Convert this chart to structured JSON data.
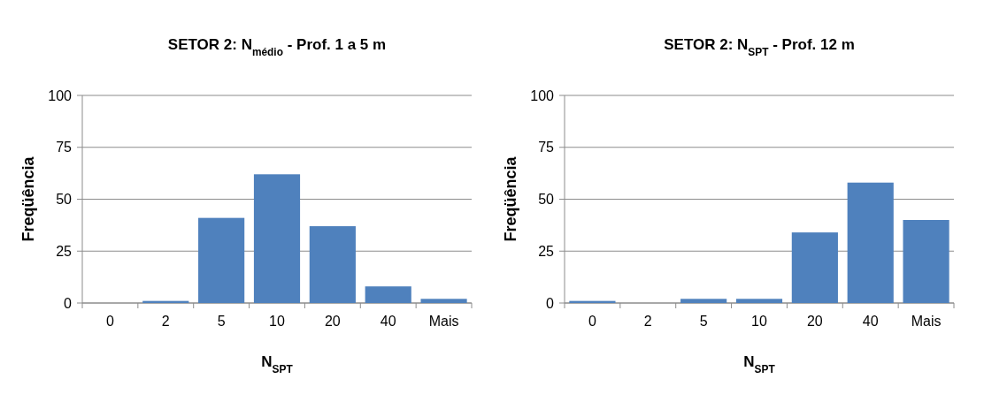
{
  "chart_data": [
    {
      "type": "bar",
      "title": "SETOR 2:  N$_{médio}$ - Prof.  1 a 5 m",
      "xlabel": "N$_{SPT}$",
      "ylabel": "Freqüência",
      "categories": [
        "0",
        "2",
        "5",
        "10",
        "20",
        "40",
        "Mais"
      ],
      "values": [
        0,
        1,
        41,
        62,
        37,
        8,
        2
      ],
      "color": "#4f81bd",
      "ylim": [
        0,
        100
      ],
      "yticks": [
        0,
        25,
        50,
        75,
        100
      ],
      "grid": "y"
    },
    {
      "type": "bar",
      "title": "SETOR 2:  N$_{SPT}$ - Prof.  12 m",
      "xlabel": "N$_{SPT}$",
      "ylabel": "Freqüência",
      "categories": [
        "0",
        "2",
        "5",
        "10",
        "20",
        "40",
        "Mais"
      ],
      "values": [
        1,
        0,
        2,
        2,
        34,
        58,
        40
      ],
      "color": "#4f81bd",
      "ylim": [
        0,
        100
      ],
      "yticks": [
        0,
        25,
        50,
        75,
        100
      ],
      "grid": "y"
    }
  ]
}
